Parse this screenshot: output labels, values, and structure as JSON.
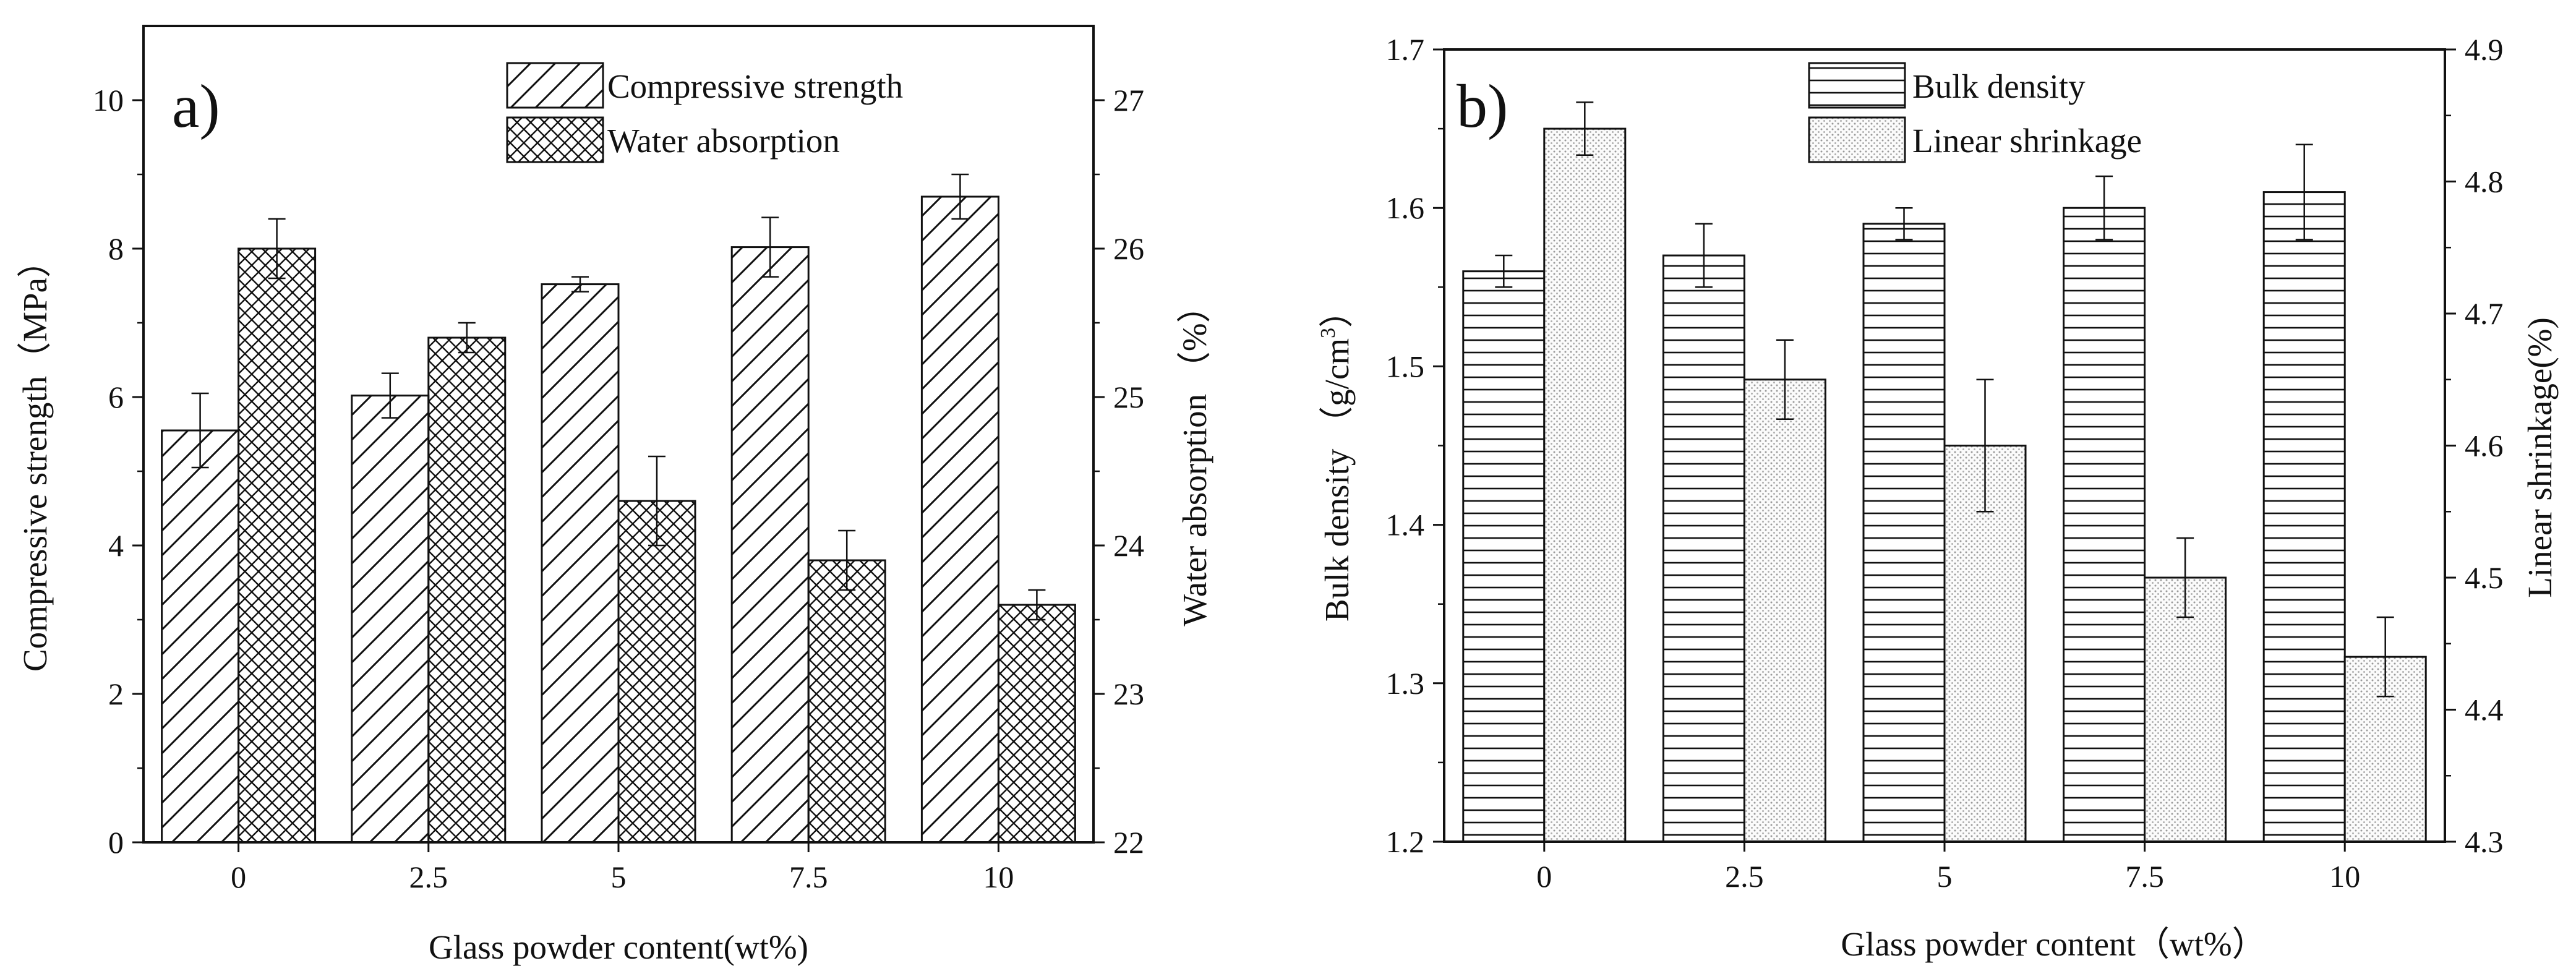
{
  "chart_data": [
    {
      "type": "bar",
      "panel_label": "a)",
      "xlabel": "Glass powder content(wt%)",
      "ylabel": "Compressive strength（MPa）",
      "y2label": "Water absorption （%）",
      "categories": [
        "0",
        "2.5",
        "5",
        "7.5",
        "10"
      ],
      "ylim": [
        0,
        11
      ],
      "yticks": [
        "0",
        "2",
        "4",
        "6",
        "8",
        "10"
      ],
      "y2lim": [
        22,
        27.5
      ],
      "y2ticks": [
        "22",
        "23",
        "24",
        "25",
        "26",
        "27"
      ],
      "legend_position": "top-center",
      "series": [
        {
          "name": "Compressive strength",
          "axis": "left",
          "pattern": "diagonal-hatch",
          "values": [
            5.55,
            6.02,
            7.52,
            8.02,
            8.7
          ],
          "errors": [
            0.5,
            0.3,
            0.1,
            0.4,
            0.3
          ]
        },
        {
          "name": "Water absorption",
          "axis": "right",
          "pattern": "crosshatch",
          "values": [
            26.0,
            25.4,
            24.3,
            23.9,
            23.6
          ],
          "errors": [
            0.2,
            0.1,
            0.3,
            0.2,
            0.1
          ]
        }
      ]
    },
    {
      "type": "bar",
      "panel_label": "b)",
      "xlabel": "Glass powder content（wt%）",
      "ylabel": "Bulk density （g/cm",
      "ylabel_sup": "3",
      "ylabel_end": "）",
      "y2label": "Linear shrinkage(%)",
      "categories": [
        "0",
        "2.5",
        "5",
        "7.5",
        "10"
      ],
      "ylim": [
        1.2,
        1.7
      ],
      "yticks": [
        "1.2",
        "1.3",
        "1.4",
        "1.5",
        "1.6",
        "1.7"
      ],
      "y2lim": [
        4.3,
        4.9
      ],
      "y2ticks": [
        "4.3",
        "4.4",
        "4.5",
        "4.6",
        "4.7",
        "4.8",
        "4.9"
      ],
      "legend_position": "top-center",
      "series": [
        {
          "name": "Bulk density",
          "axis": "left",
          "pattern": "horizontal-lines",
          "values": [
            1.56,
            1.57,
            1.59,
            1.6,
            1.61
          ],
          "errors": [
            0.01,
            0.02,
            0.01,
            0.02,
            0.03
          ]
        },
        {
          "name": "Linear shrinkage",
          "axis": "right",
          "pattern": "dotted",
          "values": [
            4.84,
            4.65,
            4.6,
            4.5,
            4.44
          ],
          "errors": [
            0.02,
            0.03,
            0.05,
            0.03,
            0.03
          ]
        }
      ]
    }
  ]
}
